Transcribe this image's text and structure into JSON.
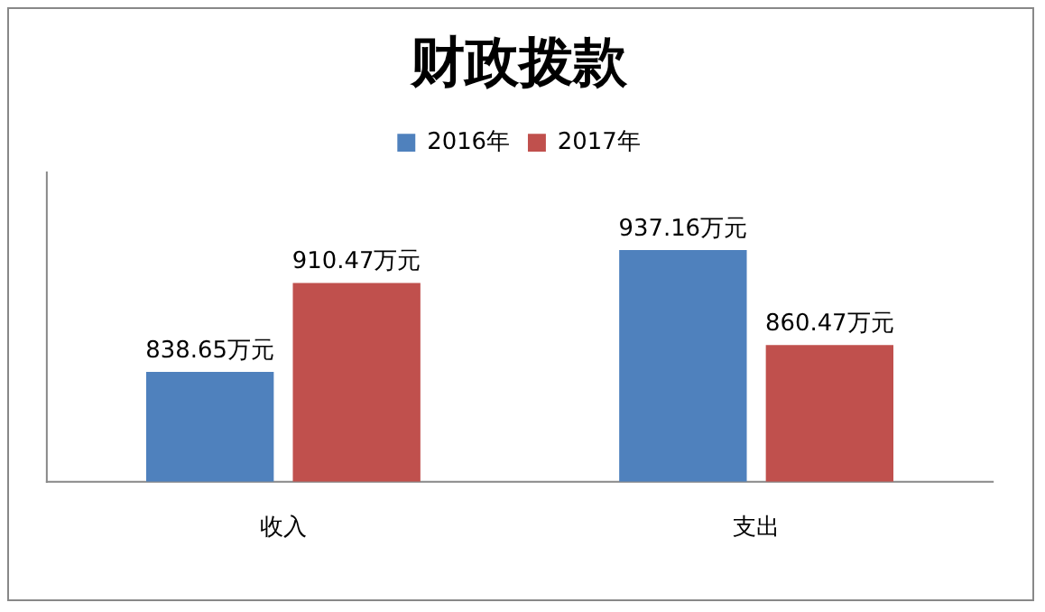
{
  "chart_data": {
    "type": "bar",
    "title": "财政拨款",
    "categories": [
      "收入",
      "支出"
    ],
    "series": [
      {
        "name": "2016年",
        "color": "#4f81bd",
        "values": [
          838.65,
          937.16
        ],
        "value_labels": [
          "838.65万元",
          "937.16万元"
        ]
      },
      {
        "name": "2017年",
        "color": "#c0504d",
        "values": [
          910.47,
          860.47
        ],
        "value_labels": [
          "910.47万元",
          "860.47万元"
        ]
      }
    ],
    "ylim": [
      750,
      1000
    ],
    "grid": false,
    "legend": "top"
  }
}
